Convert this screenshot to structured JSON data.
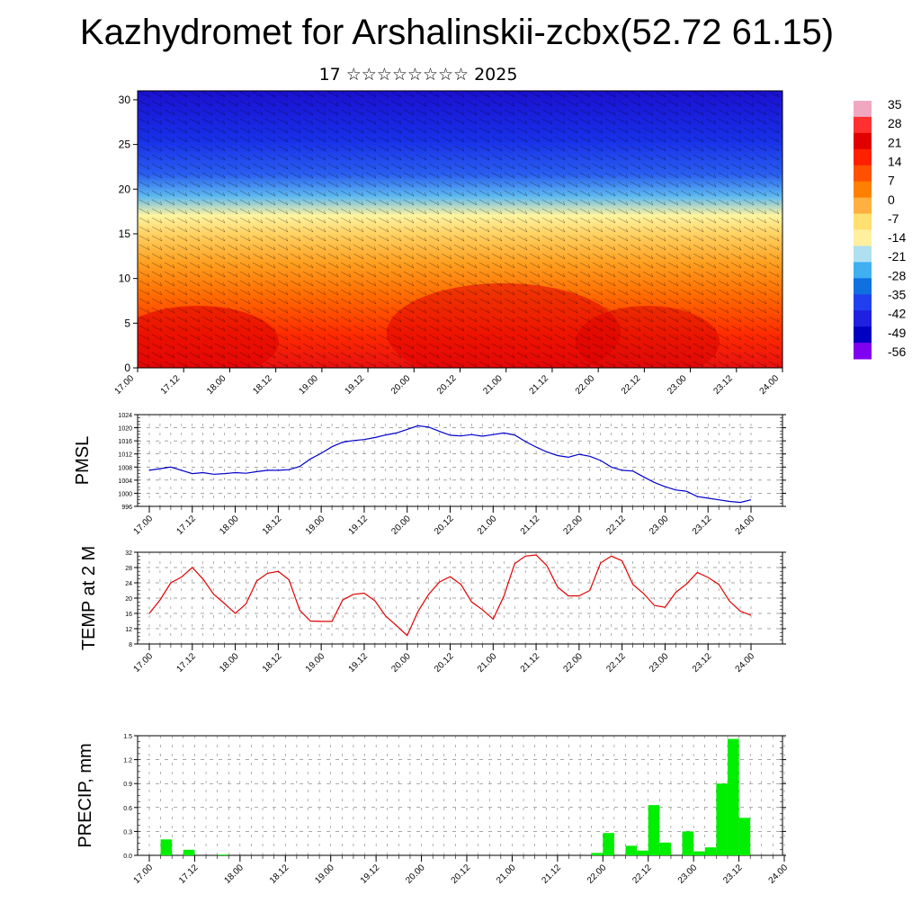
{
  "page": {
    "title": "Kazhydromet for Arshalinskii-zcbx(52.72 61.15)",
    "subtitle": "17 ☆☆☆☆☆☆☆☆ 2025"
  },
  "colors": {
    "pmsl_line": "#0000cc",
    "temp_line": "#e00000",
    "precip_bar": "#00ee00",
    "colorbar": [
      "#f0a8c0",
      "#ff3030",
      "#e00000",
      "#ff2000",
      "#ff5000",
      "#ff8000",
      "#ffb040",
      "#ffe070",
      "#fff0a0",
      "#b0e0f0",
      "#40b0f0",
      "#1070e0",
      "#2040f0",
      "#2020e0",
      "#0000c0",
      "#8000f0"
    ]
  },
  "chart_data": [
    {
      "type": "heatmap",
      "name": "cross-section",
      "x_tick_labels": [
        "17.00",
        "17.12",
        "18.00",
        "18.12",
        "19.00",
        "19.12",
        "20.00",
        "20.12",
        "21.00",
        "21.12",
        "22.00",
        "22.12",
        "23.00",
        "23.12",
        "24.00"
      ],
      "y_tick_labels": [
        "0",
        "5",
        "10",
        "15",
        "20",
        "25",
        "30"
      ],
      "ylim": [
        0,
        31
      ],
      "colorbar_labels": [
        "35",
        "28",
        "21",
        "14",
        "7",
        "0",
        "-7",
        "-14",
        "-21",
        "-28",
        "-35",
        "-42",
        "-49",
        "-56"
      ],
      "overlay": "wind barbs"
    },
    {
      "type": "line",
      "name": "pmsl",
      "ylabel": "PMSL",
      "ylim": [
        996,
        1024
      ],
      "y_tick_labels": [
        "996",
        "1000",
        "1004",
        "1008",
        "1012",
        "1016",
        "1020",
        "1024"
      ],
      "x_tick_labels": [
        "17.00",
        "17.12",
        "18.00",
        "18.12",
        "19.00",
        "19.12",
        "20.00",
        "20.12",
        "21.00",
        "21.12",
        "22.00",
        "22.12",
        "23.00",
        "23.12",
        "24.00"
      ],
      "x_hours": [
        0,
        3,
        6,
        9,
        12,
        15,
        18,
        21,
        24,
        27,
        30,
        33,
        36,
        39,
        42,
        45,
        48,
        51,
        54,
        57,
        60,
        63,
        66,
        69,
        72,
        75,
        78,
        81,
        84,
        87,
        90,
        93,
        96,
        99,
        102,
        105,
        108,
        111,
        114,
        117,
        120,
        123,
        126,
        129,
        132,
        135,
        138,
        141,
        144,
        147,
        150,
        153,
        156,
        159,
        162,
        165,
        168
      ],
      "values": [
        1007,
        1007.5,
        1008,
        1007,
        1006,
        1006.3,
        1005.8,
        1006,
        1006.3,
        1006.1,
        1006.6,
        1007,
        1007,
        1007.2,
        1008.2,
        1010.5,
        1012.2,
        1014.2,
        1015.6,
        1016.1,
        1016.4,
        1017,
        1017.8,
        1018.4,
        1019.5,
        1020.6,
        1020.2,
        1018.9,
        1017.7,
        1017.5,
        1017.9,
        1017.4,
        1017.9,
        1018.4,
        1017.8,
        1015.8,
        1014.1,
        1012.6,
        1011.5,
        1011,
        1011.9,
        1011.3,
        1010,
        1008,
        1007,
        1006.8,
        1005,
        1003.3,
        1002,
        1001,
        1000.6,
        999,
        998.5,
        998,
        997.5,
        997.2,
        998
      ]
    },
    {
      "type": "line",
      "name": "temp2m",
      "ylabel": "TEMP at 2 M",
      "ylim": [
        8,
        32
      ],
      "y_tick_labels": [
        "8",
        "12",
        "16",
        "20",
        "24",
        "28",
        "32"
      ],
      "x_tick_labels": [
        "17.00",
        "17.12",
        "18.00",
        "18.12",
        "19.00",
        "19.12",
        "20.00",
        "20.12",
        "21.00",
        "21.12",
        "22.00",
        "22.12",
        "23.00",
        "23.12",
        "24.00"
      ],
      "x_hours": [
        0,
        3,
        6,
        9,
        12,
        15,
        18,
        21,
        24,
        27,
        30,
        33,
        36,
        39,
        42,
        45,
        48,
        51,
        54,
        57,
        60,
        63,
        66,
        69,
        72,
        75,
        78,
        81,
        84,
        87,
        90,
        93,
        96,
        99,
        102,
        105,
        108,
        111,
        114,
        117,
        120,
        123,
        126,
        129,
        132,
        135,
        138,
        141,
        144,
        147,
        150,
        153,
        156,
        159,
        162,
        165,
        168
      ],
      "values": [
        16,
        19.5,
        24,
        25.5,
        28,
        25,
        21,
        18.6,
        16,
        18.5,
        24.5,
        26.5,
        27,
        24.8,
        16.8,
        14,
        13.9,
        13.9,
        19.5,
        21,
        21.3,
        19.3,
        15.3,
        12.8,
        10.2,
        16.5,
        21,
        24.2,
        25.6,
        23.6,
        19,
        17,
        14.5,
        20.5,
        29,
        31,
        31.3,
        28.5,
        22.9,
        20.6,
        20.6,
        22,
        29.2,
        31,
        29.8,
        23.6,
        21.2,
        18.1,
        17.6,
        21.5,
        23.7,
        26.7,
        25.4,
        23.6,
        19.2,
        16.6,
        15.5
      ]
    },
    {
      "type": "bar",
      "name": "precip",
      "ylabel": "PRECIP, mm",
      "ylim": [
        0,
        1.5
      ],
      "y_tick_labels": [
        "0.0",
        "0.3",
        "0.6",
        "0.9",
        "1.2",
        "1.5"
      ],
      "x_tick_labels": [
        "17.00",
        "17.12",
        "18.00",
        "18.12",
        "19.00",
        "19.12",
        "20.00",
        "20.12",
        "21.00",
        "21.12",
        "22.00",
        "22.12",
        "23.00",
        "23.12",
        "24.00"
      ],
      "bar_hours": [
        3,
        6,
        9,
        12,
        15,
        18,
        21,
        24,
        27,
        30,
        33,
        36,
        39,
        42,
        45,
        48,
        51,
        54,
        57,
        60,
        63,
        66,
        69,
        72,
        75,
        78,
        81,
        84,
        87,
        90,
        93,
        96,
        99,
        102,
        105,
        108,
        111,
        114,
        117,
        120,
        123,
        126,
        129,
        132,
        135,
        138,
        141,
        144,
        147,
        150,
        153,
        156,
        159,
        162,
        165
      ],
      "values": [
        0,
        0.2,
        0,
        0.07,
        0,
        0,
        0.01,
        0,
        0,
        0,
        0,
        0,
        0,
        0,
        0,
        0,
        0,
        0,
        0,
        0,
        0,
        0,
        0,
        0,
        0,
        0,
        0,
        0,
        0,
        0,
        0,
        0,
        0,
        0,
        0,
        0,
        0,
        0,
        0,
        0.03,
        0.28,
        0,
        0.12,
        0.06,
        0.63,
        0.16,
        0,
        0.3,
        0.05,
        0.1,
        0.9,
        1.46,
        0.47,
        0,
        0
      ]
    }
  ]
}
